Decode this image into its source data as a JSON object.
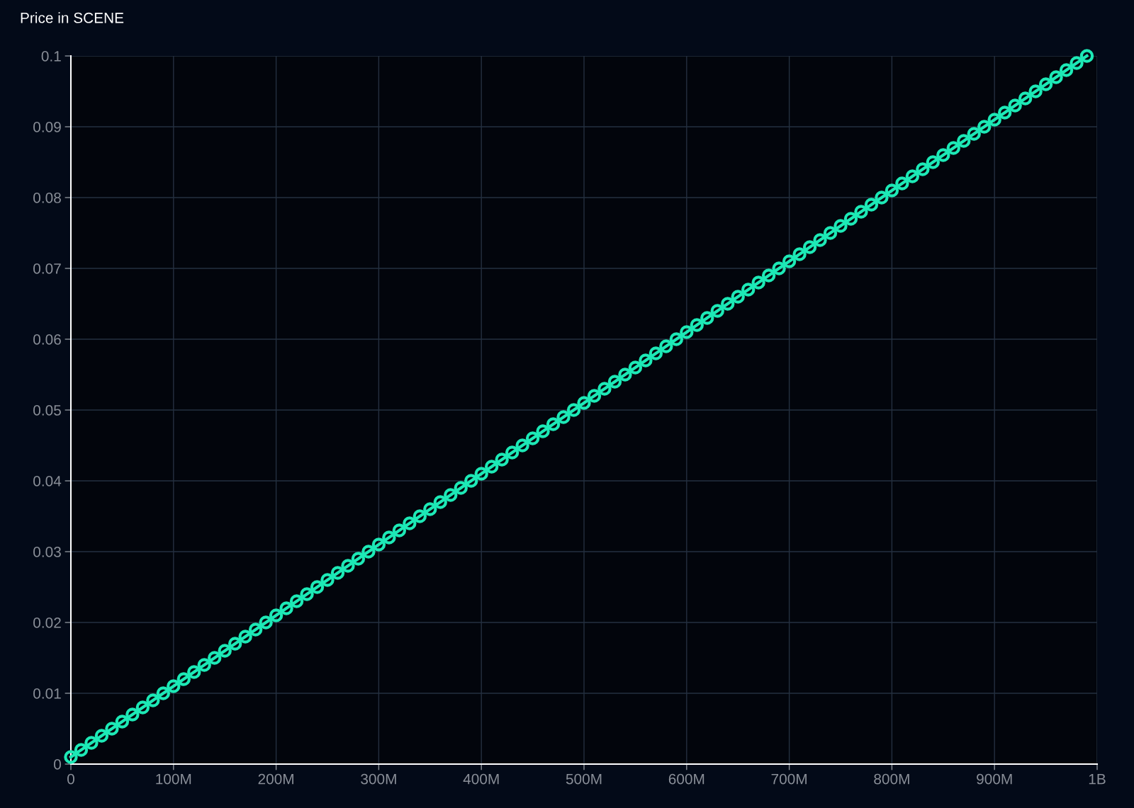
{
  "chart_data": {
    "type": "line",
    "title": "Price in SCENE",
    "x": [
      0,
      10000000.0,
      20000000.0,
      30000000.0,
      40000000.0,
      50000000.0,
      60000000.0,
      70000000.0,
      80000000.0,
      90000000.0,
      100000000.0,
      110000000.0,
      120000000.0,
      130000000.0,
      140000000.0,
      150000000.0,
      160000000.0,
      170000000.0,
      180000000.0,
      190000000.0,
      200000000.0,
      210000000.0,
      220000000.0,
      230000000.0,
      240000000.0,
      250000000.0,
      260000000.0,
      270000000.0,
      280000000.0,
      290000000.0,
      300000000.0,
      310000000.0,
      320000000.0,
      330000000.0,
      340000000.0,
      350000000.0,
      360000000.0,
      370000000.0,
      380000000.0,
      390000000.0,
      400000000.0,
      410000000.0,
      420000000.0,
      430000000.0,
      440000000.0,
      450000000.0,
      460000000.0,
      470000000.0,
      480000000.0,
      490000000.0,
      500000000.0,
      510000000.0,
      520000000.0,
      530000000.0,
      540000000.0,
      550000000.0,
      560000000.0,
      570000000.0,
      580000000.0,
      590000000.0,
      600000000.0,
      610000000.0,
      620000000.0,
      630000000.0,
      640000000.0,
      650000000.0,
      660000000.0,
      670000000.0,
      680000000.0,
      690000000.0,
      700000000.0,
      710000000.0,
      720000000.0,
      730000000.0,
      740000000.0,
      750000000.0,
      760000000.0,
      770000000.0,
      780000000.0,
      790000000.0,
      800000000.0,
      810000000.0,
      820000000.0,
      830000000.0,
      840000000.0,
      850000000.0,
      860000000.0,
      870000000.0,
      880000000.0,
      890000000.0,
      900000000.0,
      910000000.0,
      920000000.0,
      930000000.0,
      940000000.0,
      950000000.0,
      960000000.0,
      970000000.0,
      980000000.0,
      990000000.0
    ],
    "series": [
      {
        "color": "#1de9b6",
        "values": [
          0.001,
          0.002,
          0.003,
          0.004,
          0.005,
          0.006,
          0.007,
          0.008,
          0.009,
          0.01,
          0.011,
          0.012,
          0.013,
          0.014,
          0.015,
          0.016,
          0.017,
          0.018,
          0.019,
          0.02,
          0.021,
          0.022,
          0.023,
          0.024,
          0.025,
          0.026,
          0.027,
          0.028,
          0.029,
          0.03,
          0.031,
          0.032,
          0.033,
          0.034,
          0.035,
          0.036,
          0.037,
          0.038,
          0.039,
          0.04,
          0.041,
          0.042,
          0.043,
          0.044,
          0.045,
          0.046,
          0.047,
          0.048,
          0.049,
          0.05,
          0.051,
          0.052,
          0.053,
          0.054,
          0.055,
          0.056,
          0.057,
          0.058,
          0.059,
          0.06,
          0.061,
          0.062,
          0.063,
          0.064,
          0.065,
          0.066,
          0.067,
          0.068,
          0.069,
          0.07,
          0.071,
          0.072,
          0.073,
          0.074,
          0.075,
          0.076,
          0.077,
          0.078,
          0.079,
          0.08,
          0.081,
          0.082,
          0.083,
          0.084,
          0.085,
          0.086,
          0.087,
          0.088,
          0.089,
          0.09,
          0.091,
          0.092,
          0.093,
          0.094,
          0.095,
          0.096,
          0.097,
          0.098,
          0.099,
          0.1
        ]
      }
    ],
    "xlim": [
      0,
      1000000000.0
    ],
    "xticks": [
      0,
      {
        "value": 100000000.0,
        "label": "100M"
      },
      {
        "value": 200000000.0,
        "label": "200M"
      },
      {
        "value": 300000000.0,
        "label": "300M"
      },
      {
        "value": 400000000.0,
        "label": "400M"
      },
      {
        "value": 500000000.0,
        "label": "500M"
      },
      {
        "value": 600000000.0,
        "label": "600M"
      },
      {
        "value": 700000000.0,
        "label": "700M"
      },
      {
        "value": 800000000.0,
        "label": "800M"
      },
      {
        "value": 900000000.0,
        "label": "900M"
      },
      {
        "value": 1000000000.0,
        "label": "1B"
      }
    ],
    "ylim": [
      0,
      0.1
    ],
    "yticks": [
      0,
      0.01,
      0.02,
      0.03,
      0.04,
      0.05,
      0.06,
      0.07,
      0.08,
      0.09,
      0.1
    ],
    "grid": true,
    "marker": "circle",
    "line_style": "solid"
  }
}
